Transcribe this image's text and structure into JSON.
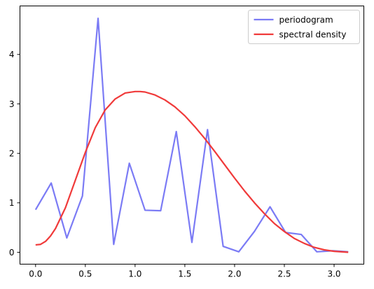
{
  "chart_data": {
    "type": "line",
    "title": "",
    "xlabel": "",
    "ylabel": "",
    "xlim": [
      -0.157,
      3.299
    ],
    "ylim": [
      -0.24,
      4.98
    ],
    "xticks": [
      0.0,
      0.5,
      1.0,
      1.5,
      2.0,
      2.5,
      3.0
    ],
    "xtick_labels": [
      "0.0",
      "0.5",
      "1.0",
      "1.5",
      "2.0",
      "2.5",
      "3.0"
    ],
    "yticks": [
      0,
      1,
      2,
      3,
      4
    ],
    "ytick_labels": [
      "0",
      "1",
      "2",
      "3",
      "4"
    ],
    "grid": false,
    "legend_position": "top-right",
    "series": [
      {
        "name": "periodogram",
        "color": "#7b7bf5",
        "style": "line",
        "x": [
          0.0,
          0.157,
          0.314,
          0.471,
          0.628,
          0.785,
          0.942,
          1.1,
          1.257,
          1.414,
          1.571,
          1.728,
          1.885,
          2.042,
          2.199,
          2.356,
          2.513,
          2.67,
          2.827,
          2.985,
          3.142
        ],
        "y": [
          0.86,
          1.4,
          0.29,
          1.14,
          4.73,
          0.16,
          1.8,
          0.85,
          0.84,
          2.44,
          0.2,
          2.48,
          0.12,
          0.01,
          0.42,
          0.92,
          0.4,
          0.36,
          0.01,
          0.03,
          0.01
        ]
      },
      {
        "name": "spectral density",
        "color": "#f03a3a",
        "style": "line",
        "x": [
          0.0,
          0.05,
          0.1,
          0.15,
          0.2,
          0.3,
          0.4,
          0.5,
          0.6,
          0.7,
          0.8,
          0.9,
          1.0,
          1.05,
          1.1,
          1.2,
          1.3,
          1.4,
          1.5,
          1.6,
          1.7,
          1.8,
          1.9,
          2.0,
          2.1,
          2.2,
          2.3,
          2.4,
          2.5,
          2.6,
          2.7,
          2.8,
          2.9,
          3.0,
          3.142
        ],
        "y": [
          0.15,
          0.16,
          0.22,
          0.33,
          0.48,
          0.9,
          1.46,
          2.02,
          2.52,
          2.88,
          3.1,
          3.22,
          3.25,
          3.25,
          3.24,
          3.18,
          3.08,
          2.94,
          2.76,
          2.54,
          2.3,
          2.04,
          1.77,
          1.5,
          1.24,
          1.0,
          0.78,
          0.58,
          0.42,
          0.28,
          0.18,
          0.1,
          0.05,
          0.02,
          0.0
        ]
      }
    ]
  }
}
